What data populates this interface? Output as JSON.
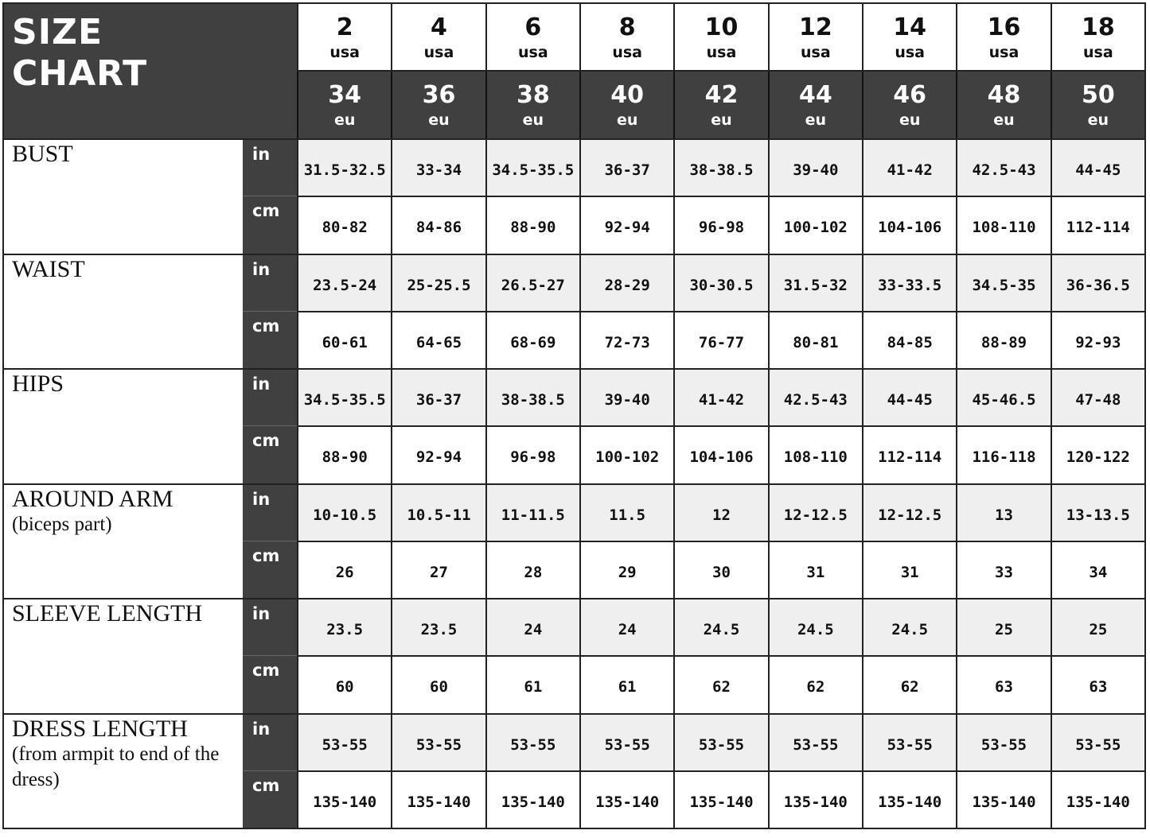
{
  "title": {
    "line1": "SIZE",
    "line2": "CHART"
  },
  "sizes": [
    {
      "usa": "2",
      "eu": "34"
    },
    {
      "usa": "4",
      "eu": "36"
    },
    {
      "usa": "6",
      "eu": "38"
    },
    {
      "usa": "8",
      "eu": "40"
    },
    {
      "usa": "10",
      "eu": "42"
    },
    {
      "usa": "12",
      "eu": "44"
    },
    {
      "usa": "14",
      "eu": "46"
    },
    {
      "usa": "16",
      "eu": "48"
    },
    {
      "usa": "18",
      "eu": "50"
    }
  ],
  "usa_label": "usa",
  "eu_label": "eu",
  "unit_in": "in",
  "unit_cm": "cm",
  "measurements": [
    {
      "label": "BUST",
      "sub": "",
      "in": [
        "31.5-32.5",
        "33-34",
        "34.5-35.5",
        "36-37",
        "38-38.5",
        "39-40",
        "41-42",
        "42.5-43",
        "44-45"
      ],
      "cm": [
        "80-82",
        "84-86",
        "88-90",
        "92-94",
        "96-98",
        "100-102",
        "104-106",
        "108-110",
        "112-114"
      ]
    },
    {
      "label": "WAIST",
      "sub": "",
      "in": [
        "23.5-24",
        "25-25.5",
        "26.5-27",
        "28-29",
        "30-30.5",
        "31.5-32",
        "33-33.5",
        "34.5-35",
        "36-36.5"
      ],
      "cm": [
        "60-61",
        "64-65",
        "68-69",
        "72-73",
        "76-77",
        "80-81",
        "84-85",
        "88-89",
        "92-93"
      ]
    },
    {
      "label": "HIPS",
      "sub": "",
      "in": [
        "34.5-35.5",
        "36-37",
        "38-38.5",
        "39-40",
        "41-42",
        "42.5-43",
        "44-45",
        "45-46.5",
        "47-48"
      ],
      "cm": [
        "88-90",
        "92-94",
        "96-98",
        "100-102",
        "104-106",
        "108-110",
        "112-114",
        "116-118",
        "120-122"
      ]
    },
    {
      "label": "AROUND ARM",
      "sub": "(biceps part)",
      "in": [
        "10-10.5",
        "10.5-11",
        "11-11.5",
        "11.5",
        "12",
        "12-12.5",
        "12-12.5",
        "13",
        "13-13.5"
      ],
      "cm": [
        "26",
        "27",
        "28",
        "29",
        "30",
        "31",
        "31",
        "33",
        "34"
      ]
    },
    {
      "label": "SLEEVE  LENGTH",
      "sub": "",
      "in": [
        "23.5",
        "23.5",
        "24",
        "24",
        "24.5",
        "24.5",
        "24.5",
        "25",
        "25"
      ],
      "cm": [
        "60",
        "60",
        "61",
        "61",
        "62",
        "62",
        "62",
        "63",
        "63"
      ]
    },
    {
      "label": "DRESS  LENGTH",
      "sub": "(from armpit to end of the dress)",
      "in": [
        "53-55",
        "53-55",
        "53-55",
        "53-55",
        "53-55",
        "53-55",
        "53-55",
        "53-55",
        "53-55"
      ],
      "cm": [
        "135-140",
        "135-140",
        "135-140",
        "135-140",
        "135-140",
        "135-140",
        "135-140",
        "135-140",
        "135-140"
      ]
    }
  ],
  "colors": {
    "dark": "#404040",
    "shade": "#efefef"
  }
}
